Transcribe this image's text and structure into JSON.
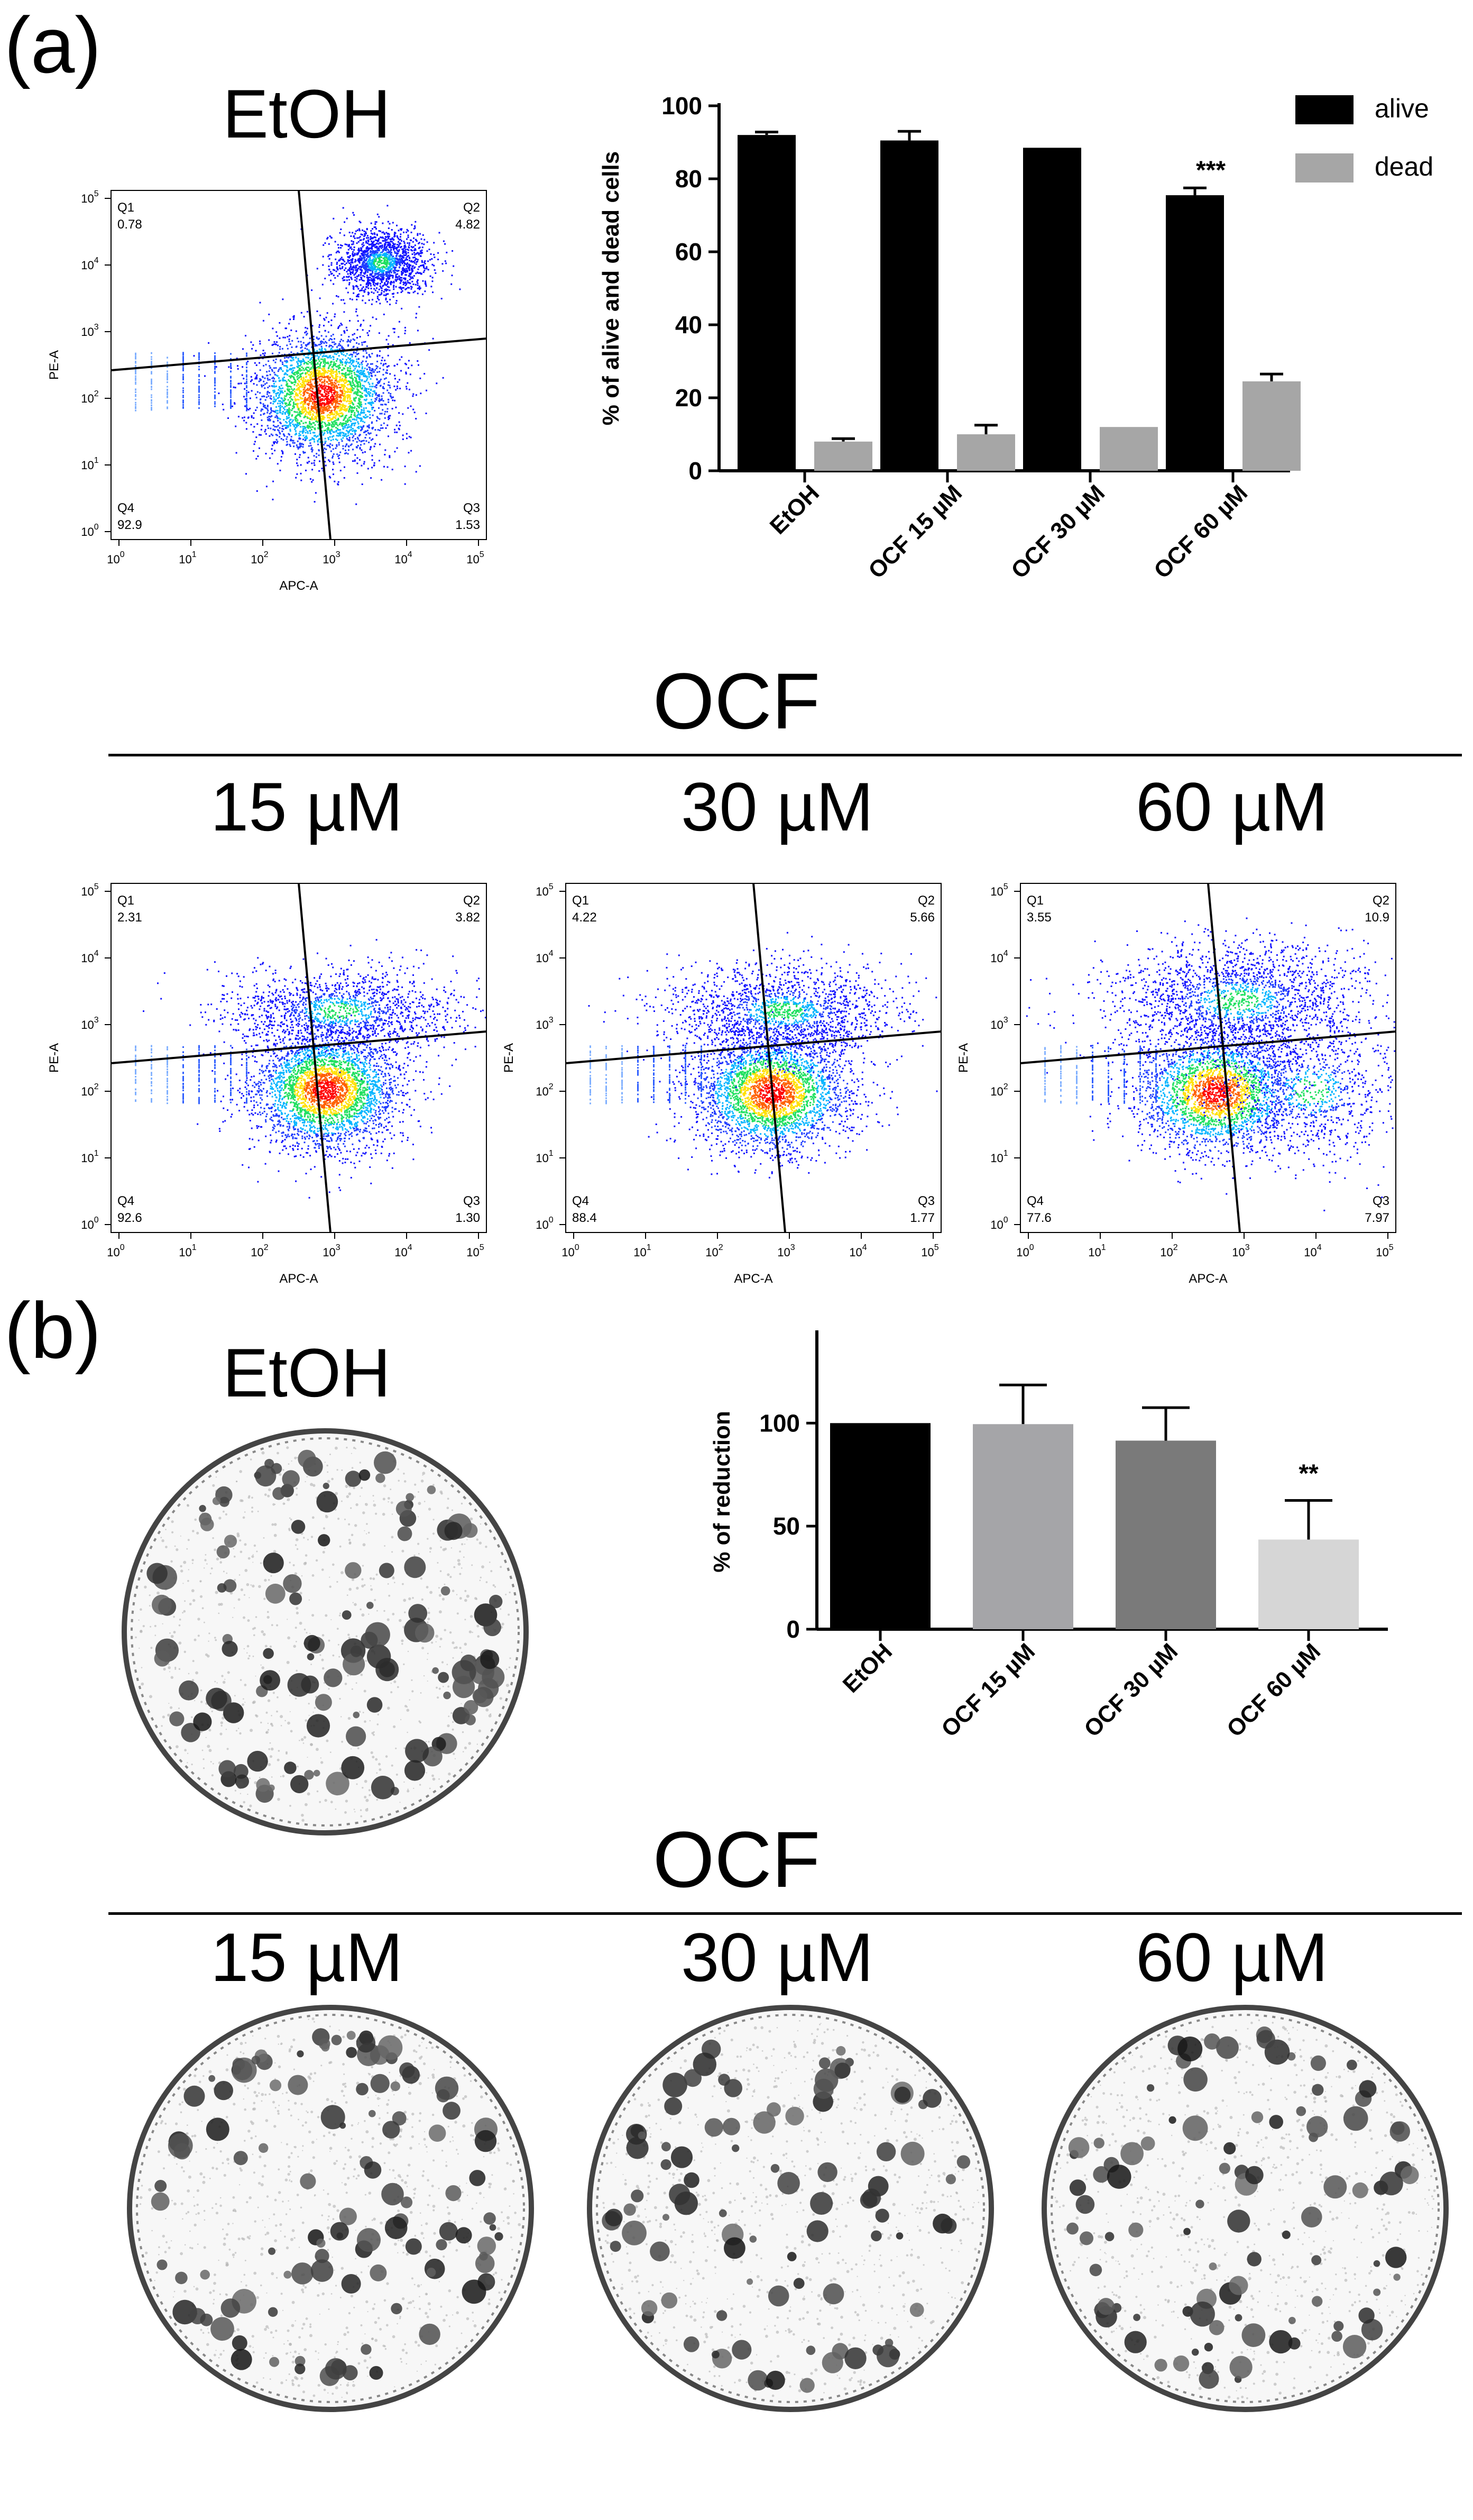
{
  "figure": {
    "panel_a_label": "(a)",
    "panel_b_label": "(b)",
    "a": {
      "ctrl_title": "EtOH",
      "ocf_title": "OCF",
      "flow": [
        {
          "title": "EtOH",
          "q1": "0.78",
          "q2": "4.82",
          "q3": "1.53",
          "q4": "92.9"
        },
        {
          "title": "15 µM",
          "q1": "2.31",
          "q2": "3.82",
          "q3": "1.30",
          "q4": "92.6"
        },
        {
          "title": "30 µM",
          "q1": "4.22",
          "q2": "5.66",
          "q3": "1.77",
          "q4": "88.4"
        },
        {
          "title": "60 µM",
          "q1": "3.55",
          "q2": "10.9",
          "q3": "7.97",
          "q4": "77.6"
        }
      ],
      "flow_axes": {
        "xlabel": "APC-A",
        "ylabel": "PE-A",
        "ticks_base": "10",
        "ticks_exp": [
          "0",
          "1",
          "2",
          "3",
          "4",
          "5"
        ],
        "quad_labels": {
          "q1": "Q1",
          "q2": "Q2",
          "q3": "Q3",
          "q4": "Q4"
        }
      }
    },
    "b": {
      "ctrl_title": "EtOH",
      "ocf_title": "OCF",
      "dish_titles": [
        "15 µM",
        "30 µM",
        "60 µM"
      ]
    }
  },
  "chart_data": [
    {
      "type": "bar",
      "title": "",
      "categories": [
        "EtOH",
        "OCF 15 µM",
        "OCF 30 µM",
        "OCF 60 µM"
      ],
      "series": [
        {
          "name": "alive",
          "color": "#000000",
          "values": [
            92,
            90.5,
            88.5,
            75.5
          ],
          "errors": [
            0.8,
            2.5,
            0,
            2
          ]
        },
        {
          "name": "dead",
          "color": "#a6a6a6",
          "values": [
            8,
            10,
            12,
            24.5
          ],
          "errors": [
            0.8,
            2.5,
            0,
            2
          ]
        }
      ],
      "ylabel": "% of alive and dead cells",
      "xlabel": "",
      "ylim": [
        0,
        100
      ],
      "yticks": [
        "0",
        "20",
        "40",
        "60",
        "80",
        "100"
      ],
      "legend": "top-right",
      "annotations": [
        {
          "category": "OCF 60 µM",
          "text": "***"
        }
      ]
    },
    {
      "type": "bar",
      "title": "",
      "categories": [
        "EtOH",
        "OCF 15 µM",
        "OCF 30 µM",
        "OCF 60 µM"
      ],
      "values": [
        100,
        99.5,
        91.5,
        43.5
      ],
      "errors": [
        0,
        19,
        16,
        19
      ],
      "colors": [
        "#000000",
        "#a5a5a8",
        "#7a7a7a",
        "#d6d6d6"
      ],
      "ylabel": "% of reduction",
      "xlabel": "",
      "ylim": [
        0,
        145
      ],
      "yticks": [
        "0",
        "50",
        "100"
      ],
      "annotations": [
        {
          "category": "OCF 60 µM",
          "text": "**"
        }
      ]
    }
  ]
}
